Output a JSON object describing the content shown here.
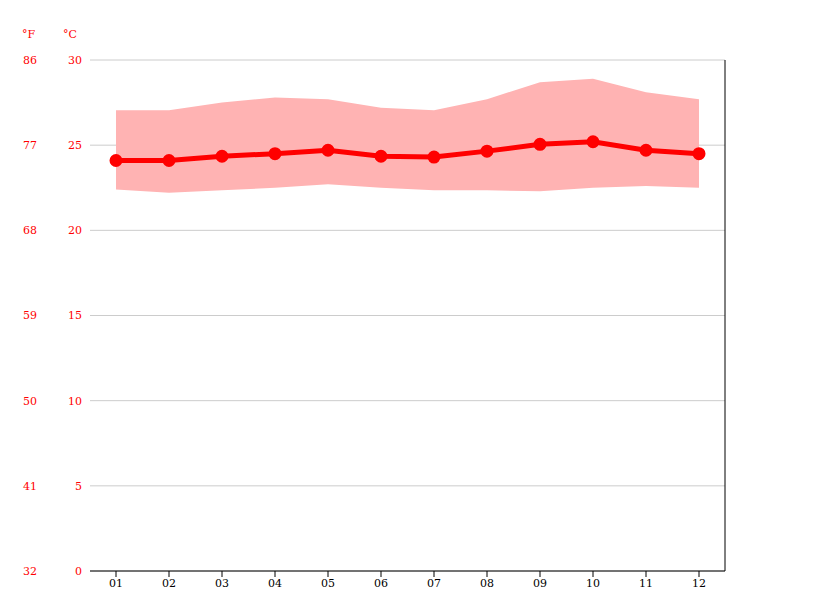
{
  "chart_data": {
    "type": "line",
    "categories": [
      "01",
      "02",
      "03",
      "04",
      "05",
      "06",
      "07",
      "08",
      "09",
      "10",
      "11",
      "12"
    ],
    "ylabel": "°C",
    "y2label": "°F",
    "ylim": [
      0,
      30
    ],
    "yticks": [
      0,
      5,
      10,
      15,
      20,
      25,
      30
    ],
    "y2lim": [
      32,
      86
    ],
    "y2ticks": [
      32,
      41,
      50,
      59,
      68,
      77,
      86
    ],
    "grid": true,
    "series": [
      {
        "type": "area",
        "color": "#ffb3b3",
        "low": [
          22.4,
          22.2,
          22.35,
          22.5,
          22.7,
          22.5,
          22.35,
          22.35,
          22.3,
          22.5,
          22.6,
          22.5
        ],
        "high": [
          27.05,
          27.05,
          27.5,
          27.8,
          27.7,
          27.2,
          27.05,
          27.7,
          28.7,
          28.9,
          28.1,
          27.7
        ]
      },
      {
        "type": "line",
        "color": "#ff0000",
        "marker": "circle",
        "values": [
          24.1,
          24.1,
          24.35,
          24.5,
          24.7,
          24.35,
          24.3,
          24.65,
          25.05,
          25.2,
          24.7,
          24.5
        ]
      }
    ]
  }
}
